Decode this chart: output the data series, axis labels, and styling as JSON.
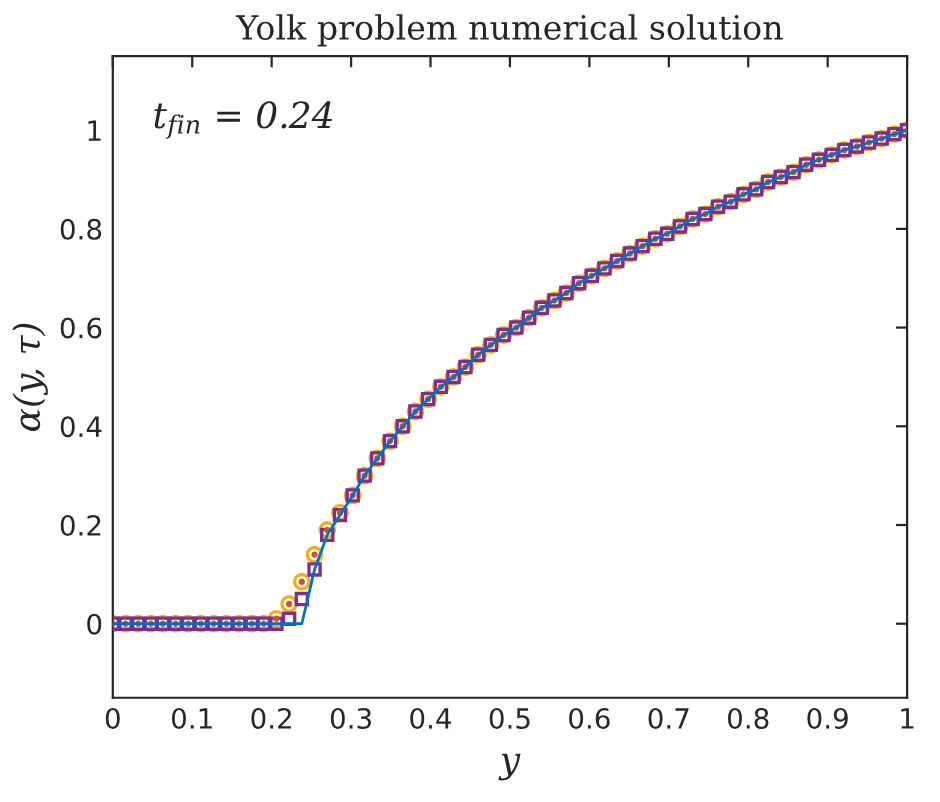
{
  "chart_data": {
    "type": "line",
    "title": "Yolk problem numerical solution",
    "xlabel": "y",
    "ylabel": "α(y, τ)",
    "annotations": [
      "t$_{fin}$ = 0.24"
    ],
    "x": [
      0,
      0.016,
      0.032,
      0.048,
      0.063,
      0.079,
      0.095,
      0.111,
      0.127,
      0.143,
      0.159,
      0.175,
      0.19,
      0.206,
      0.222,
      0.238,
      0.254,
      0.27,
      0.286,
      0.302,
      0.317,
      0.333,
      0.349,
      0.365,
      0.381,
      0.397,
      0.413,
      0.429,
      0.444,
      0.46,
      0.476,
      0.492,
      0.508,
      0.524,
      0.54,
      0.556,
      0.571,
      0.587,
      0.603,
      0.619,
      0.635,
      0.651,
      0.667,
      0.683,
      0.698,
      0.714,
      0.73,
      0.746,
      0.762,
      0.778,
      0.794,
      0.81,
      0.825,
      0.841,
      0.857,
      0.873,
      0.889,
      0.905,
      0.921,
      0.937,
      0.952,
      0.968,
      0.984,
      1
    ],
    "series": [
      {
        "color": "#0072bd",
        "line_style": "solid",
        "marker": "none",
        "values": [
          0,
          0,
          0,
          0,
          0,
          0,
          0,
          0,
          0,
          0,
          0,
          0,
          0,
          0,
          0,
          0,
          0.11,
          0.18,
          0.22,
          0.26,
          0.3,
          0.335,
          0.37,
          0.4,
          0.43,
          0.455,
          0.48,
          0.5,
          0.52,
          0.545,
          0.565,
          0.585,
          0.6,
          0.62,
          0.64,
          0.655,
          0.67,
          0.69,
          0.705,
          0.72,
          0.735,
          0.75,
          0.765,
          0.78,
          0.79,
          0.805,
          0.82,
          0.83,
          0.845,
          0.855,
          0.87,
          0.88,
          0.895,
          0.905,
          0.915,
          0.93,
          0.94,
          0.95,
          0.96,
          0.967,
          0.975,
          0.983,
          0.992,
          1
        ]
      },
      {
        "type": "scatter",
        "color": "#edb120",
        "marker": "circle",
        "values": [
          0,
          0,
          0,
          0,
          0,
          0,
          0,
          0,
          0,
          0,
          0,
          0,
          0,
          0.01,
          0.04,
          0.085,
          0.14,
          0.19,
          0.225,
          0.26,
          0.3,
          0.335,
          0.37,
          0.4,
          0.43,
          0.455,
          0.48,
          0.5,
          0.52,
          0.545,
          0.565,
          0.585,
          0.6,
          0.62,
          0.64,
          0.655,
          0.67,
          0.69,
          0.705,
          0.72,
          0.735,
          0.75,
          0.765,
          0.78,
          0.79,
          0.805,
          0.82,
          0.83,
          0.845,
          0.855,
          0.87,
          0.88,
          0.895,
          0.905,
          0.915,
          0.93,
          0.94,
          0.95,
          0.96,
          0.967,
          0.975,
          0.983,
          0.992,
          1
        ]
      },
      {
        "type": "scatter",
        "color": "#7e2f8e",
        "marker": "square",
        "values": [
          0,
          0,
          0,
          0,
          0,
          0,
          0,
          0,
          0,
          0,
          0,
          0,
          0,
          0,
          0.01,
          0.05,
          0.11,
          0.18,
          0.22,
          0.26,
          0.3,
          0.335,
          0.37,
          0.4,
          0.43,
          0.455,
          0.48,
          0.5,
          0.52,
          0.545,
          0.565,
          0.585,
          0.6,
          0.62,
          0.64,
          0.655,
          0.67,
          0.69,
          0.705,
          0.72,
          0.735,
          0.75,
          0.765,
          0.78,
          0.79,
          0.805,
          0.82,
          0.83,
          0.845,
          0.855,
          0.87,
          0.88,
          0.895,
          0.905,
          0.915,
          0.93,
          0.94,
          0.95,
          0.96,
          0.967,
          0.975,
          0.983,
          0.992,
          1
        ]
      },
      {
        "type": "scatter",
        "color": "#d95319",
        "marker": "dot",
        "values": [
          0,
          0,
          0,
          0,
          0,
          0,
          0,
          0,
          0,
          0,
          0,
          0,
          0,
          0.01,
          0.04,
          0.085,
          0.14,
          0.19,
          0.225,
          0.26,
          0.3,
          0.335,
          0.37,
          0.4,
          0.43,
          0.455,
          0.48,
          0.5,
          0.52,
          0.545,
          0.565,
          0.585,
          0.6,
          0.62,
          0.64,
          0.655,
          0.67,
          0.69,
          0.705,
          0.72,
          0.735,
          0.75,
          0.765,
          0.78,
          0.79,
          0.805,
          0.82,
          0.83,
          0.845,
          0.855,
          0.87,
          0.88,
          0.895,
          0.905,
          0.915,
          0.93,
          0.94,
          0.95,
          0.96,
          0.967,
          0.975,
          0.983,
          0.992,
          1
        ]
      }
    ],
    "xlim": [
      0,
      1
    ],
    "xticks": [
      0,
      0.1,
      0.2,
      0.3,
      0.4,
      0.5,
      0.6,
      0.7,
      0.8,
      0.9,
      1
    ],
    "ylim": [
      -0.15,
      1.15
    ],
    "yticks": [
      0,
      0.2,
      0.4,
      0.6,
      0.8,
      1
    ],
    "grid": false,
    "legend": false
  }
}
